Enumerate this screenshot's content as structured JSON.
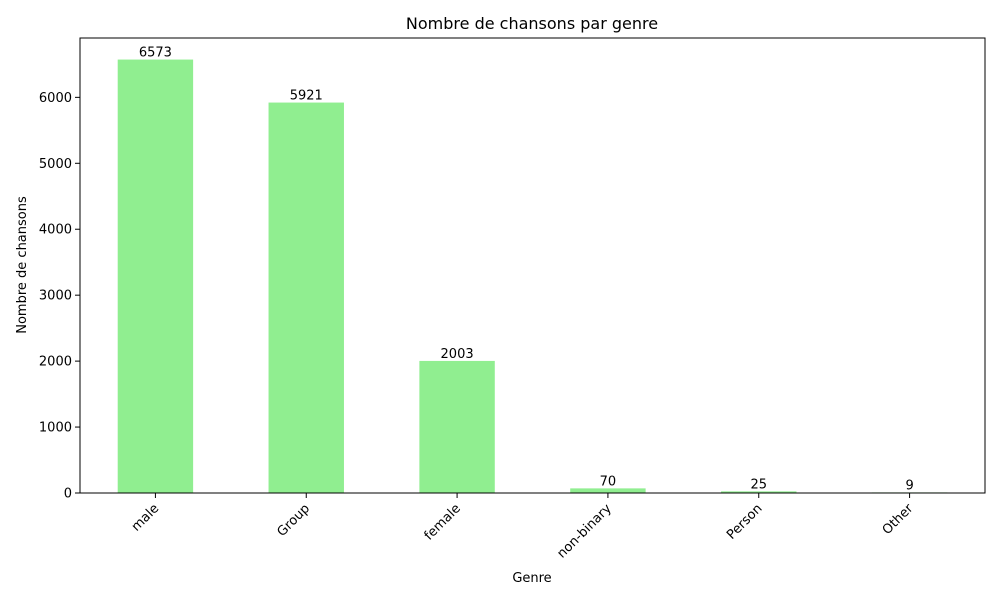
{
  "chart_data": {
    "type": "bar",
    "title": "Nombre de chansons par genre",
    "xlabel": "Genre",
    "ylabel": "Nombre de chansons",
    "categories": [
      "male",
      "Group",
      "female",
      "non-binary",
      "Person",
      "Other"
    ],
    "values": [
      6573,
      5921,
      2003,
      70,
      25,
      9
    ],
    "data_labels": [
      "6573",
      "5921",
      "2003",
      "70",
      "25",
      "9"
    ],
    "ylim": [
      0,
      6900
    ],
    "yticks": [
      0,
      1000,
      2000,
      3000,
      4000,
      5000,
      6000
    ],
    "ytick_labels": [
      "0",
      "1000",
      "2000",
      "3000",
      "4000",
      "5000",
      "6000"
    ],
    "grid": false,
    "legend": "none",
    "bar_color": "#90EE90",
    "x_tick_rotation_deg": 45
  }
}
